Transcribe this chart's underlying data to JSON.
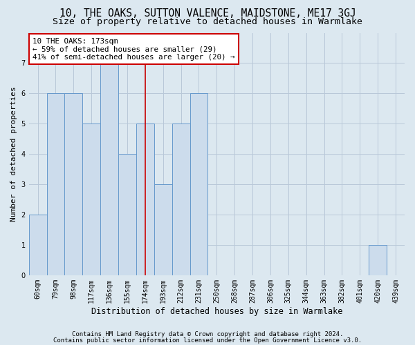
{
  "title": "10, THE OAKS, SUTTON VALENCE, MAIDSTONE, ME17 3GJ",
  "subtitle": "Size of property relative to detached houses in Warmlake",
  "xlabel": "Distribution of detached houses by size in Warmlake",
  "ylabel": "Number of detached properties",
  "footer1": "Contains HM Land Registry data © Crown copyright and database right 2024.",
  "footer2": "Contains public sector information licensed under the Open Government Licence v3.0.",
  "categories": [
    "60sqm",
    "79sqm",
    "98sqm",
    "117sqm",
    "136sqm",
    "155sqm",
    "174sqm",
    "193sqm",
    "212sqm",
    "231sqm",
    "250sqm",
    "268sqm",
    "287sqm",
    "306sqm",
    "325sqm",
    "344sqm",
    "363sqm",
    "382sqm",
    "401sqm",
    "420sqm",
    "439sqm"
  ],
  "values": [
    2,
    6,
    6,
    5,
    7,
    4,
    5,
    3,
    5,
    6,
    0,
    0,
    0,
    0,
    0,
    0,
    0,
    0,
    0,
    1,
    0
  ],
  "bar_color": "#ccdcec",
  "bar_edge_color": "#6699cc",
  "vline_color": "#cc0000",
  "vline_x": 6,
  "annotation_text": "10 THE OAKS: 173sqm\n← 59% of detached houses are smaller (29)\n41% of semi-detached houses are larger (20) →",
  "annotation_box_facecolor": "white",
  "annotation_box_edgecolor": "#cc0000",
  "ylim": [
    0,
    8
  ],
  "yticks": [
    0,
    1,
    2,
    3,
    4,
    5,
    6,
    7,
    8
  ],
  "grid_color": "#b8c8d8",
  "background_color": "#dce8f0",
  "title_fontsize": 10.5,
  "subtitle_fontsize": 9.5,
  "xlabel_fontsize": 8.5,
  "ylabel_fontsize": 8,
  "tick_fontsize": 7,
  "annotation_fontsize": 7.8,
  "footer_fontsize": 6.5
}
